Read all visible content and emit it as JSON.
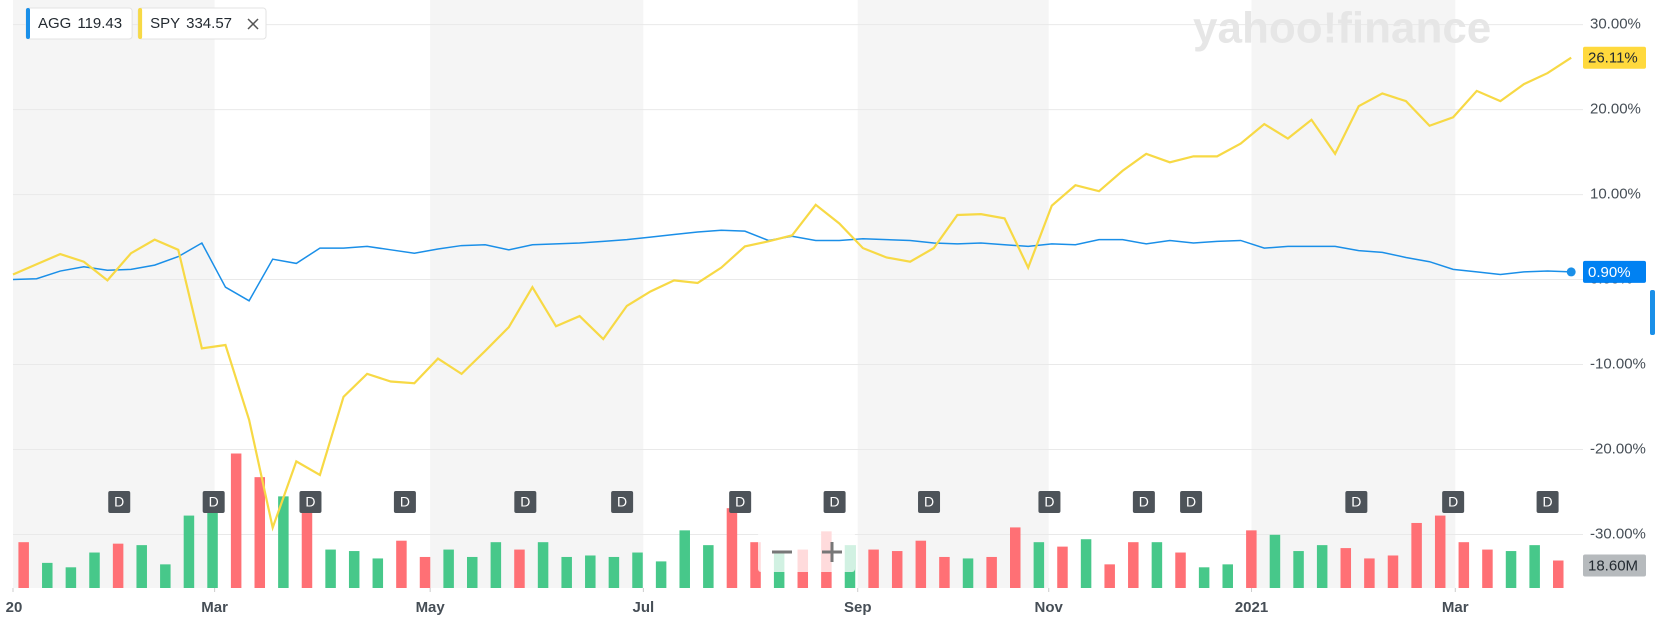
{
  "chart_data": {
    "type": "line",
    "watermark": "yahoo!finance",
    "x": [
      0,
      1,
      2,
      3,
      4,
      5,
      6,
      7,
      8,
      9,
      10,
      11,
      12,
      13,
      14,
      15,
      16,
      17,
      18,
      19,
      20,
      21,
      22,
      23,
      24,
      25,
      26,
      27,
      28,
      29,
      30,
      31,
      32,
      33,
      34,
      35,
      36,
      37,
      38,
      39,
      40,
      41,
      42,
      43,
      44,
      45,
      46,
      47,
      48,
      49,
      50,
      51,
      52,
      53,
      54,
      55,
      56,
      57,
      58,
      59,
      60,
      61,
      62,
      63,
      64,
      65,
      66
    ],
    "xlim": [
      0,
      66.5
    ],
    "xticks": [
      {
        "value": 0,
        "label": "20"
      },
      {
        "value": 8.54,
        "label": "Mar"
      },
      {
        "value": 17.67,
        "label": "May"
      },
      {
        "value": 26.7,
        "label": "Jul"
      },
      {
        "value": 35.78,
        "label": "Sep"
      },
      {
        "value": 43.87,
        "label": "Nov"
      },
      {
        "value": 52.46,
        "label": "2021"
      },
      {
        "value": 61.09,
        "label": "Mar"
      }
    ],
    "ylim": [
      -36.3,
      32.9
    ],
    "yticks": [
      {
        "value": 30,
        "label": "30.00%"
      },
      {
        "value": 20,
        "label": "20.00%"
      },
      {
        "value": 10,
        "label": "10.00%"
      },
      {
        "value": 0,
        "label": "0.00%"
      },
      {
        "value": -10,
        "label": "-10.00%"
      },
      {
        "value": -20,
        "label": "-20.00%"
      },
      {
        "value": -30,
        "label": "-30.00%"
      }
    ],
    "grid": true,
    "series": [
      {
        "name": "AGG",
        "price": 119.43,
        "color": "#1a8fe8",
        "last_label": "0.90%",
        "values": [
          0,
          0.1,
          1.0,
          1.5,
          1.1,
          1.2,
          1.7,
          2.7,
          4.3,
          -0.9,
          -2.5,
          2.4,
          1.9,
          3.7,
          3.7,
          3.9,
          3.5,
          3.1,
          3.6,
          4.0,
          4.1,
          3.5,
          4.1,
          4.2,
          4.3,
          4.5,
          4.7,
          5.0,
          5.3,
          5.6,
          5.8,
          5.7,
          4.6,
          5.1,
          4.6,
          4.6,
          4.8,
          4.7,
          4.6,
          4.3,
          4.2,
          4.3,
          4.1,
          3.9,
          4.2,
          4.1,
          4.7,
          4.7,
          4.2,
          4.6,
          4.3,
          4.5,
          4.6,
          3.7,
          3.9,
          3.9,
          3.9,
          3.4,
          3.2,
          2.6,
          2.1,
          1.2,
          0.9,
          0.6,
          0.9,
          1.0,
          0.9
        ]
      },
      {
        "name": "SPY",
        "price": 334.57,
        "color": "#f7d945",
        "last_label": "26.11%",
        "values": [
          0.6,
          1.8,
          3.0,
          2.1,
          -0.1,
          3.1,
          4.7,
          3.5,
          -8.1,
          -7.7,
          -16.5,
          -29.2,
          -21.4,
          -23.0,
          -13.8,
          -11.1,
          -12.0,
          -12.2,
          -9.3,
          -11.1,
          -8.4,
          -5.6,
          -0.9,
          -5.5,
          -4.3,
          -7.0,
          -3.1,
          -1.4,
          -0.1,
          -0.4,
          1.4,
          3.9,
          4.5,
          5.2,
          8.8,
          6.6,
          3.7,
          2.6,
          2.1,
          3.7,
          7.6,
          7.7,
          7.2,
          1.4,
          8.7,
          11.1,
          10.4,
          12.8,
          14.8,
          13.8,
          14.5,
          14.5,
          16.0,
          18.3,
          16.6,
          18.8,
          14.8,
          20.4,
          21.9,
          21.0,
          18.1,
          19.1,
          22.2,
          21.0,
          23.0,
          24.3,
          26.11
        ]
      }
    ],
    "volume": {
      "last_label": "18.60M",
      "values": [
        31,
        17,
        14,
        24,
        30,
        29,
        16,
        49,
        52,
        91,
        75,
        62,
        55,
        26,
        25,
        20,
        32,
        21,
        26,
        21,
        31,
        26,
        31,
        21,
        22,
        21,
        24,
        18,
        39,
        29,
        54,
        31,
        24,
        26,
        38,
        29,
        26,
        25,
        32,
        21,
        20,
        21,
        41,
        31,
        28,
        33,
        16,
        31,
        31,
        24,
        14,
        16,
        39,
        36,
        25,
        29,
        27,
        20,
        22,
        44,
        49,
        31,
        26,
        25,
        29,
        18.6
      ],
      "colors": [
        "#ff7075",
        "#47c88a",
        "#47c88a",
        "#47c88a",
        "#ff7075",
        "#47c88a",
        "#47c88a",
        "#47c88a",
        "#47c88a",
        "#ff7075",
        "#ff7075",
        "#47c88a",
        "#ff7075",
        "#47c88a",
        "#47c88a",
        "#47c88a",
        "#ff7075",
        "#ff7075",
        "#47c88a",
        "#47c88a",
        "#47c88a",
        "#ff7075",
        "#47c88a",
        "#47c88a",
        "#47c88a",
        "#47c88a",
        "#47c88a",
        "#47c88a",
        "#47c88a",
        "#47c88a",
        "#ff7075",
        "#ff7075",
        "#47c88a",
        "#ff7075",
        "#ff7075",
        "#47c88a",
        "#ff7075",
        "#ff7075",
        "#ff7075",
        "#ff7075",
        "#47c88a",
        "#ff7075",
        "#ff7075",
        "#47c88a",
        "#ff7075",
        "#47c88a",
        "#ff7075",
        "#ff7075",
        "#47c88a",
        "#ff7075",
        "#47c88a",
        "#47c88a",
        "#ff7075",
        "#47c88a",
        "#47c88a",
        "#47c88a",
        "#ff7075",
        "#ff7075",
        "#ff7075",
        "#ff7075",
        "#ff7075",
        "#ff7075",
        "#ff7075",
        "#47c88a",
        "#47c88a",
        "#ff7075"
      ]
    },
    "dividends": [
      {
        "x": 4.5,
        "label": "D"
      },
      {
        "x": 8.5,
        "label": "D"
      },
      {
        "x": 12.6,
        "label": "D"
      },
      {
        "x": 16.6,
        "label": "D"
      },
      {
        "x": 21.7,
        "label": "D"
      },
      {
        "x": 25.8,
        "label": "D"
      },
      {
        "x": 30.8,
        "label": "D"
      },
      {
        "x": 34.8,
        "label": "D"
      },
      {
        "x": 38.8,
        "label": "D"
      },
      {
        "x": 43.9,
        "label": "D"
      },
      {
        "x": 47.9,
        "label": "D"
      },
      {
        "x": 49.9,
        "label": "D"
      },
      {
        "x": 56.9,
        "label": "D"
      },
      {
        "x": 61.0,
        "label": "D"
      },
      {
        "x": 65.0,
        "label": "D"
      }
    ]
  }
}
